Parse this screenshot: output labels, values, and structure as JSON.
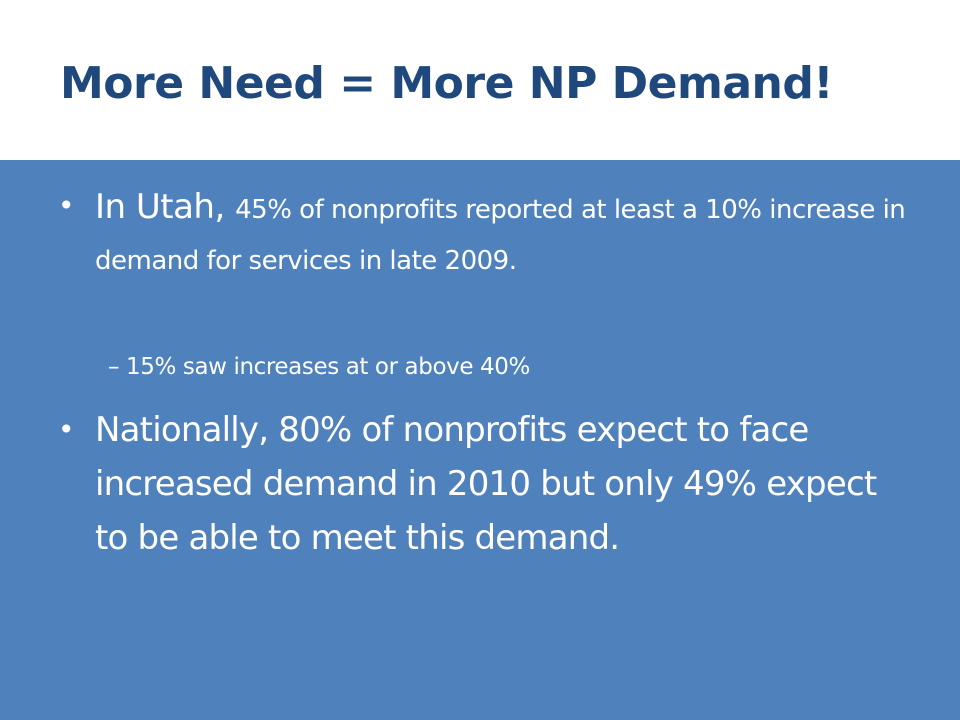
{
  "slide": {
    "title": "More Need = More NP Demand!",
    "bullets": [
      {
        "symbol": "•",
        "lead": "In Utah, ",
        "text": "45% of nonprofits reported at least a 10% increase in demand for services in late 2009.",
        "sub_bullets": [
          {
            "symbol": "–",
            "text": "15% saw increases at or above 40%"
          }
        ]
      },
      {
        "symbol": "•",
        "text": "Nationally, 80% of nonprofits expect to face increased demand in 2010 but only 49% expect to be able to meet this demand."
      }
    ],
    "colors": {
      "title": "#1f497d",
      "content_background": "#4f81bd",
      "text": "#ffffff"
    }
  }
}
